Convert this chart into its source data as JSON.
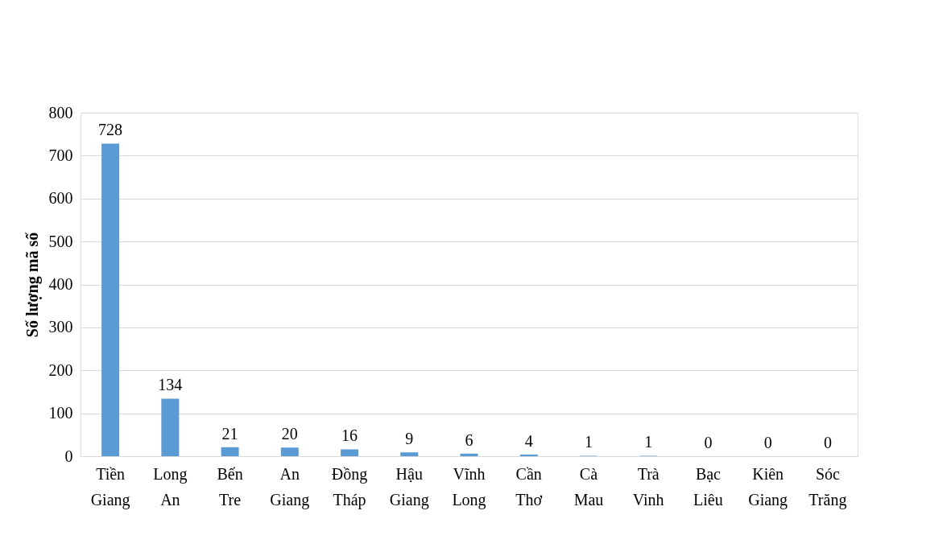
{
  "chart_data": {
    "type": "bar",
    "ylabel": "Số lượng mã số",
    "categories": [
      "Tiền Giang",
      "Long An",
      "Bến Tre",
      "An Giang",
      "Đồng Tháp",
      "Hậu Giang",
      "Vĩnh Long",
      "Cần Thơ",
      "Cà Mau",
      "Trà Vinh",
      "Bạc Liêu",
      "Kiên Giang",
      "Sóc Trăng"
    ],
    "values": [
      728,
      134,
      21,
      20,
      16,
      9,
      6,
      4,
      1,
      1,
      0,
      0,
      0
    ],
    "color": "#5b9bd5",
    "ylim": [
      0,
      800
    ],
    "yticks": [
      0,
      100,
      200,
      300,
      400,
      500,
      600,
      700,
      800
    ],
    "grid": "y",
    "data_labels": true
  }
}
